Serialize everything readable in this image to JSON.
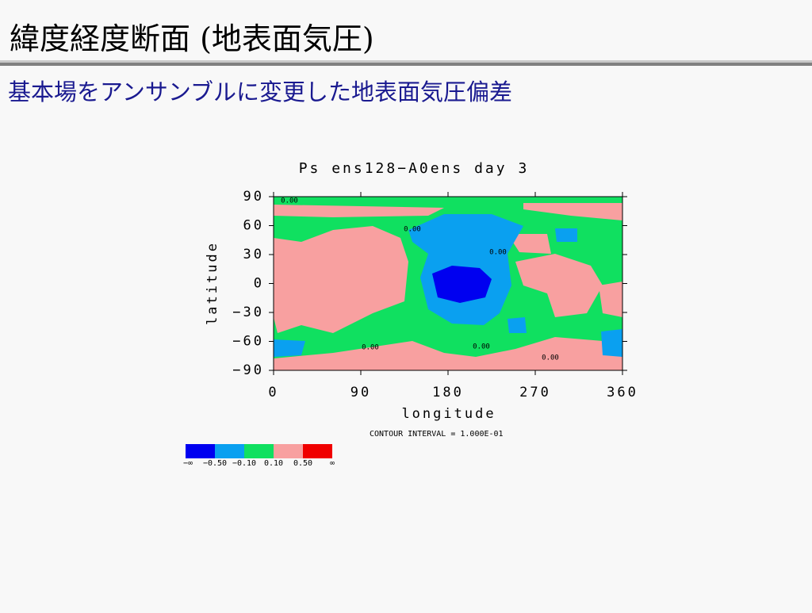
{
  "slide": {
    "title": "緯度経度断面 (地表面気圧)",
    "subtitle": "基本場をアンサンブルに変更した地表面気圧偏差"
  },
  "chart_data": {
    "type": "contour",
    "title": "Ps ens128−A0ens  day 3",
    "xlabel": "longitude",
    "ylabel": "latitude",
    "xlim": [
      0,
      360
    ],
    "ylim": [
      -90,
      90
    ],
    "xticks": [
      0,
      90,
      180,
      270,
      360
    ],
    "yticks": [
      {
        "value": -90,
        "label": "−90"
      },
      {
        "value": -60,
        "label": "−60"
      },
      {
        "value": -30,
        "label": "−30"
      },
      0,
      30,
      60,
      90
    ],
    "contour_labels": [
      "0.00",
      "0.00",
      "0.00",
      "0.00",
      "0.00",
      "0.00"
    ],
    "note": "CONTOUR INTERVAL = 1.000E-01",
    "colorbar": {
      "colors": [
        "#0000f0",
        "#0aa0f0",
        "#10e060",
        "#f8a0a0",
        "#f00000"
      ],
      "ends": [
        "−∞",
        "∞"
      ],
      "levels": [
        {
          "value": -0.5,
          "label": "−0.50"
        },
        {
          "value": -0.1,
          "label": "−0.10"
        },
        {
          "value": 0.1,
          "label": "0.10"
        },
        {
          "value": 0.5,
          "label": "0.50"
        }
      ]
    }
  }
}
